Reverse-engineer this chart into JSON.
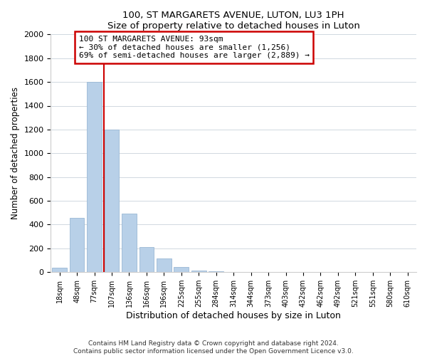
{
  "title": "100, ST MARGARETS AVENUE, LUTON, LU3 1PH",
  "subtitle": "Size of property relative to detached houses in Luton",
  "xlabel": "Distribution of detached houses by size in Luton",
  "ylabel": "Number of detached properties",
  "bar_labels": [
    "18sqm",
    "48sqm",
    "77sqm",
    "107sqm",
    "136sqm",
    "166sqm",
    "196sqm",
    "225sqm",
    "255sqm",
    "284sqm",
    "314sqm",
    "344sqm",
    "373sqm",
    "403sqm",
    "432sqm",
    "462sqm",
    "492sqm",
    "521sqm",
    "551sqm",
    "580sqm",
    "610sqm"
  ],
  "bar_values": [
    35,
    455,
    1600,
    1200,
    490,
    210,
    115,
    45,
    15,
    5,
    2,
    0,
    0,
    0,
    0,
    0,
    0,
    0,
    0,
    0,
    0
  ],
  "bar_color": "#b8d0e8",
  "bar_edge_color": "#9ab8d4",
  "vline_color": "#cc0000",
  "annotation_line1": "100 ST MARGARETS AVENUE: 93sqm",
  "annotation_line2": "← 30% of detached houses are smaller (1,256)",
  "annotation_line3": "69% of semi-detached houses are larger (2,889) →",
  "annotation_box_color": "#ffffff",
  "annotation_box_edge": "#cc0000",
  "ylim": [
    0,
    2000
  ],
  "yticks": [
    0,
    200,
    400,
    600,
    800,
    1000,
    1200,
    1400,
    1600,
    1800,
    2000
  ],
  "footer": "Contains HM Land Registry data © Crown copyright and database right 2024.\nContains public sector information licensed under the Open Government Licence v3.0.",
  "background_color": "#ffffff",
  "grid_color": "#d0d8e0"
}
